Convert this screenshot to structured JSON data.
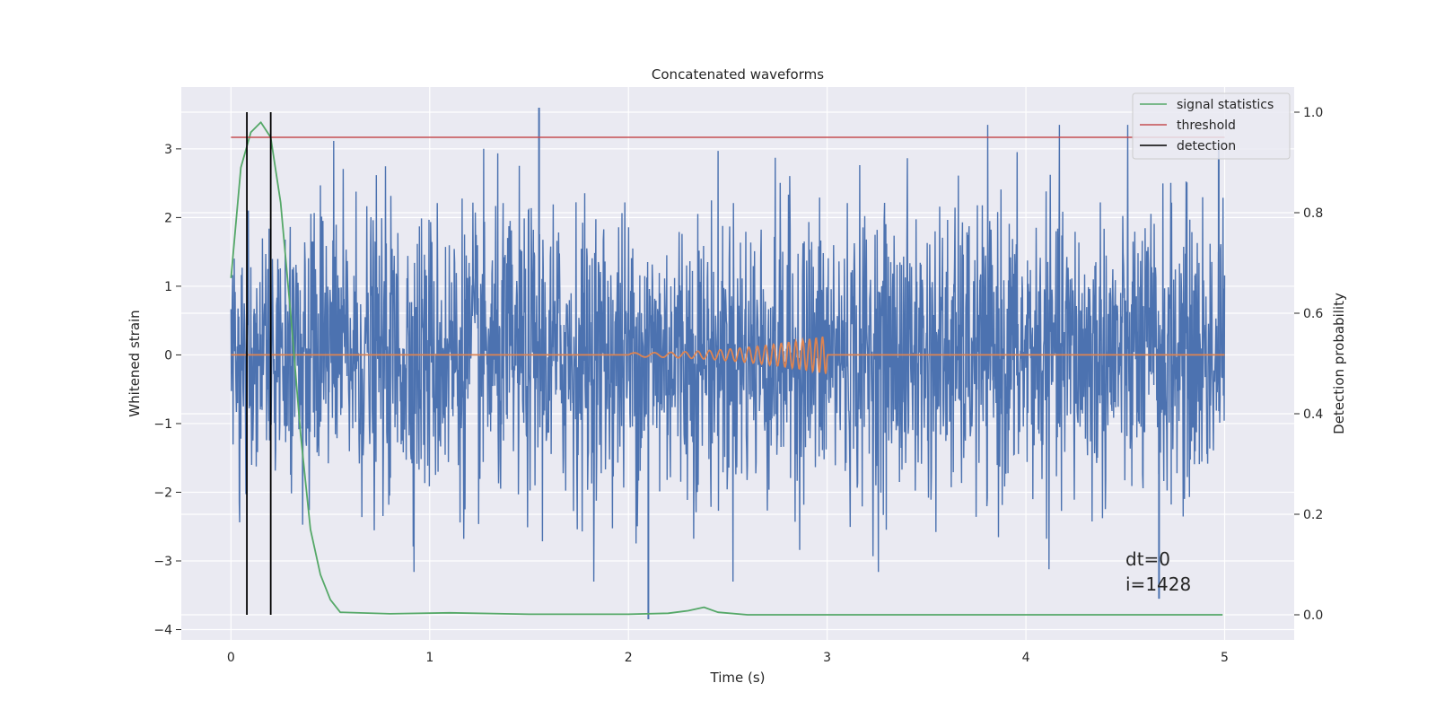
{
  "chart_data": {
    "type": "line",
    "title": "Concatenated waveforms",
    "xlabel": "Time (s)",
    "ylabel": "Whitened strain",
    "ylabel_right": "Detection probability",
    "xlim": [
      -0.25,
      5.35
    ],
    "ylim": [
      -4.15,
      3.9
    ],
    "ylim_right": [
      -0.05,
      1.05
    ],
    "x_ticks": [
      "0",
      "1",
      "2",
      "3",
      "4",
      "5"
    ],
    "y_ticks": [
      "−4",
      "−3",
      "−2",
      "−1",
      "0",
      "1",
      "2",
      "3"
    ],
    "y_ticks_right": [
      "0.0",
      "0.2",
      "0.4",
      "0.6",
      "0.8",
      "1.0"
    ],
    "grid": true,
    "legend_position": "top-right",
    "colors": {
      "noise": "#4c72b0",
      "template": "#dd8452",
      "statistics": "#55a868",
      "threshold": "#c44e52",
      "detection": "#000000",
      "background": "#eaeaf2",
      "grid": "#ffffff"
    },
    "series": [
      {
        "name": "signal statistics",
        "axis": "right",
        "x": [
          0.0,
          0.05,
          0.1,
          0.15,
          0.2,
          0.25,
          0.3,
          0.35,
          0.4,
          0.45,
          0.5,
          0.55,
          0.8,
          1.1,
          1.5,
          2.0,
          2.2,
          2.3,
          2.38,
          2.45,
          2.6,
          3.0,
          4.0,
          4.99
        ],
        "y": [
          0.67,
          0.89,
          0.96,
          0.98,
          0.95,
          0.82,
          0.6,
          0.36,
          0.17,
          0.08,
          0.03,
          0.005,
          0.002,
          0.004,
          0.001,
          0.001,
          0.003,
          0.008,
          0.015,
          0.005,
          0.0,
          0.0,
          0.0,
          0.0
        ]
      },
      {
        "name": "threshold",
        "axis": "right",
        "x": [
          0,
          5
        ],
        "y": [
          0.95,
          0.95
        ]
      },
      {
        "name": "detection",
        "axis": "right",
        "x": [
          0.08,
          0.2
        ],
        "y_span": [
          0.0,
          1.0
        ]
      }
    ],
    "legend": [
      "signal statistics",
      "threshold",
      "detection"
    ],
    "annotations": [
      "dt=0",
      "i=1428"
    ]
  }
}
